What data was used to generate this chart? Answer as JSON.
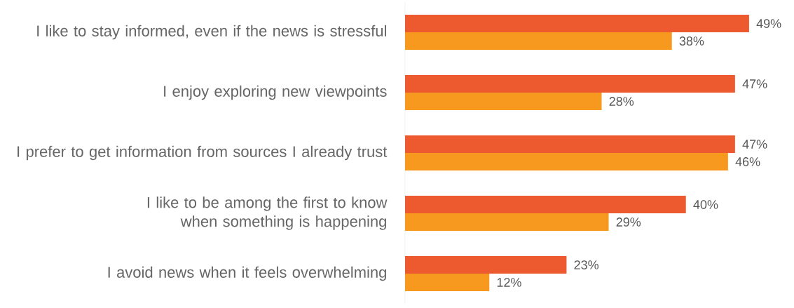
{
  "chart_data": {
    "type": "bar",
    "orientation": "horizontal",
    "categories": [
      "I like to stay informed, even if the news is stressful",
      "I enjoy exploring new viewpoints",
      "I prefer to get information from sources I already trust",
      "I like to be among the first to know when something is happening",
      "I avoid news when it feels overwhelming"
    ],
    "series": [
      {
        "color": "#ee5a2f",
        "values": [
          49,
          47,
          47,
          40,
          23
        ],
        "value_labels": [
          "49%",
          "47%",
          "47%",
          "40%",
          "23%"
        ]
      },
      {
        "color": "#f7991f",
        "values": [
          38,
          28,
          46,
          29,
          12
        ],
        "value_labels": [
          "38%",
          "28%",
          "46%",
          "29%",
          "12%"
        ]
      }
    ]
  }
}
